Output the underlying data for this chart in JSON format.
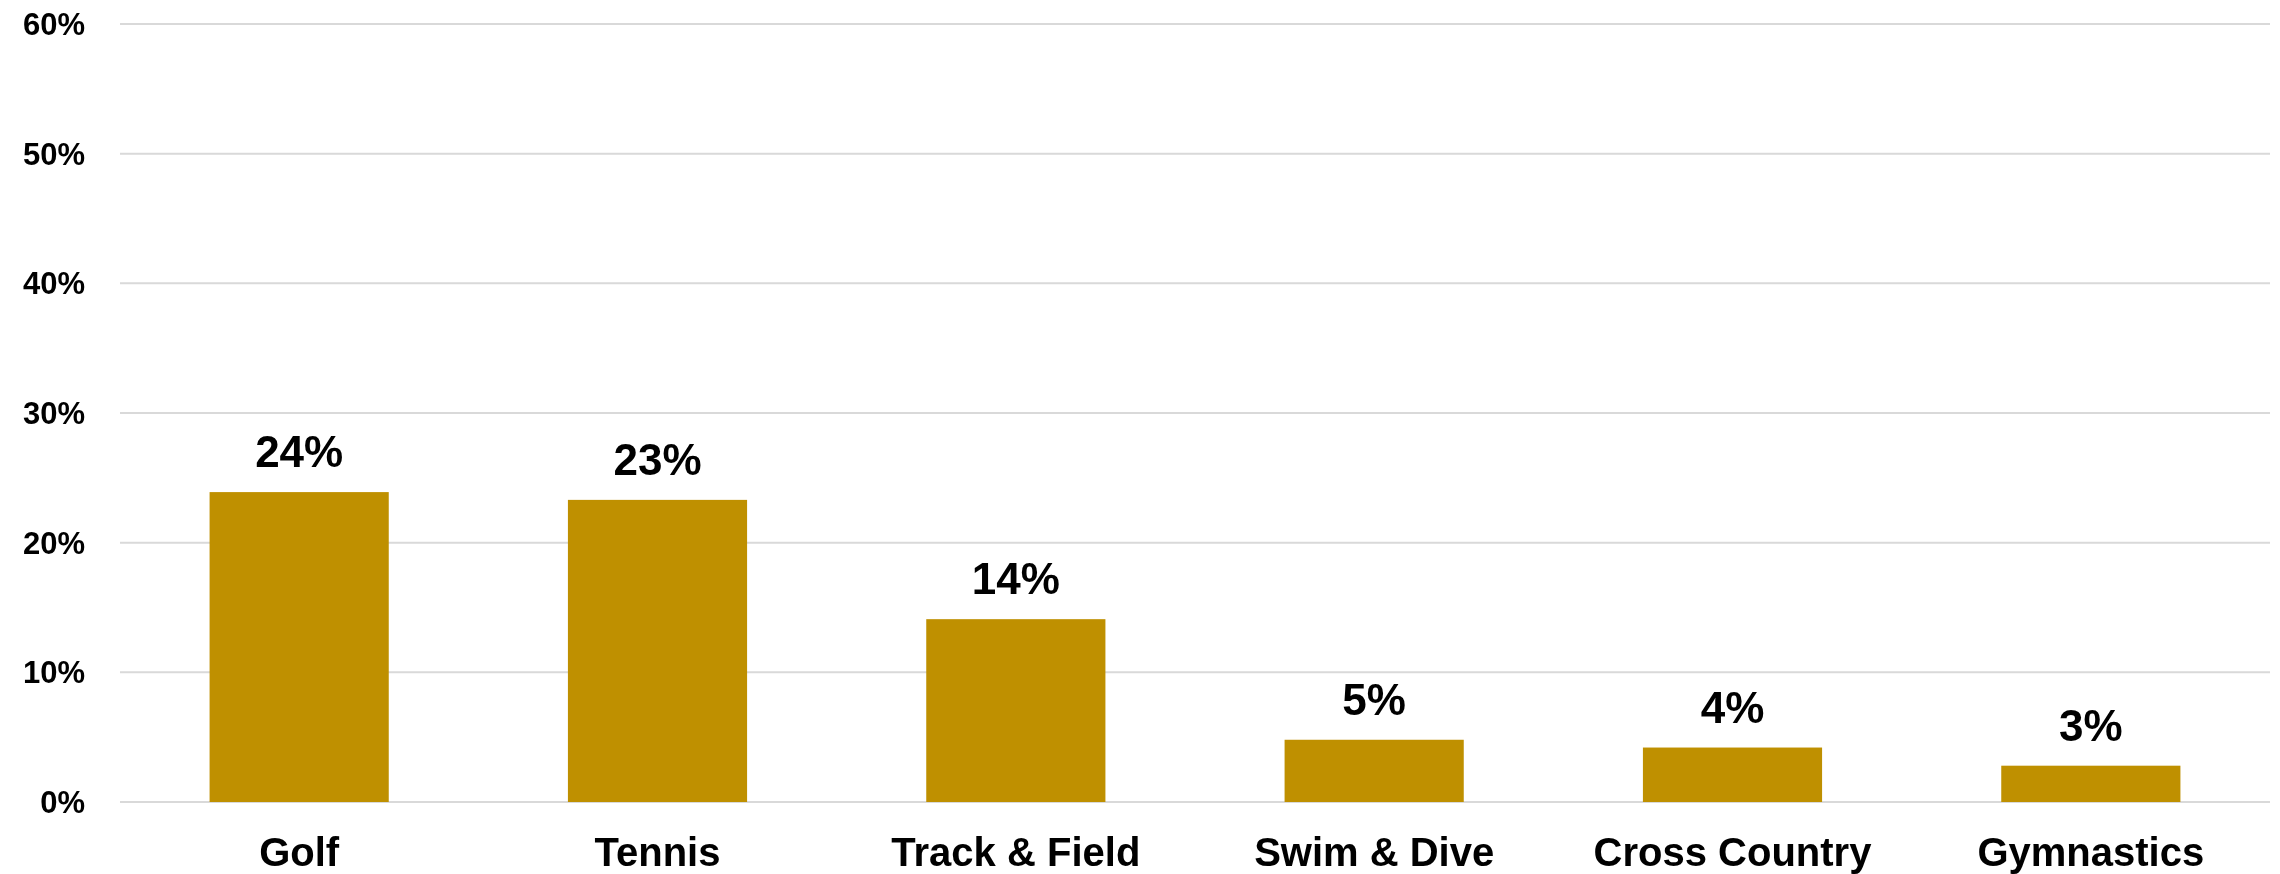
{
  "chart_data": {
    "type": "bar",
    "categories": [
      "Golf",
      "Tennis",
      "Track & Field",
      "Swim & Dive",
      "Cross Country",
      "Gymnastics"
    ],
    "values": [
      23.9,
      23.3,
      14.1,
      4.8,
      4.2,
      2.8
    ],
    "value_labels": [
      "24%",
      "23%",
      "14%",
      "5%",
      "4%",
      "3%"
    ],
    "color": "#bf9000",
    "ylim": [
      0,
      60
    ],
    "yticks": [
      {
        "value": 0,
        "label": "0%"
      },
      {
        "value": 10,
        "label": "10%"
      },
      {
        "value": 20,
        "label": "20%"
      },
      {
        "value": 30,
        "label": "30%"
      },
      {
        "value": 40,
        "label": "40%"
      },
      {
        "value": 50,
        "label": "50%"
      },
      {
        "value": 60,
        "label": "60%"
      }
    ],
    "grid": "y"
  }
}
